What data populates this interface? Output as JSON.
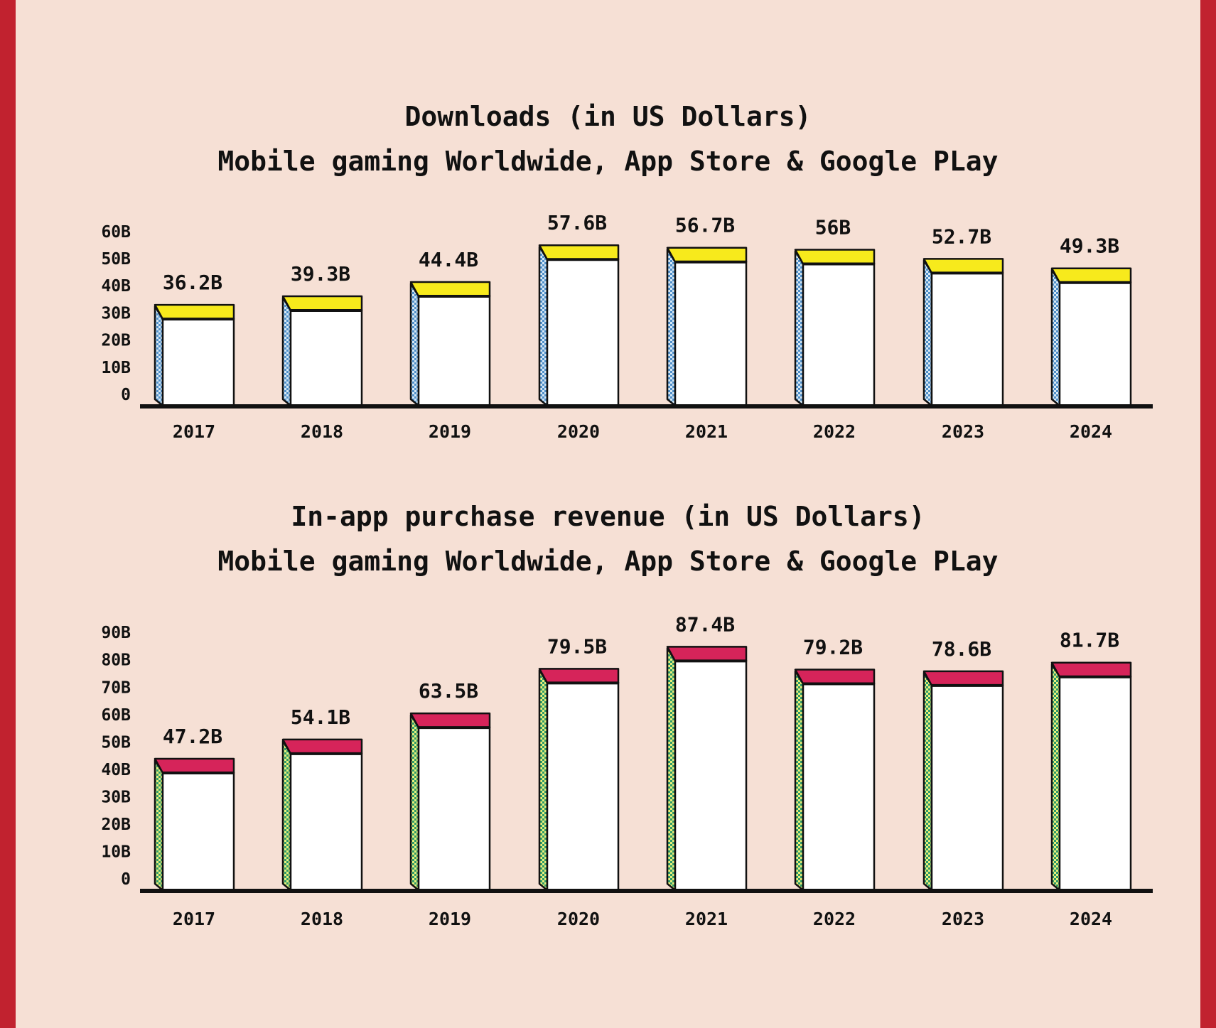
{
  "chart_data": [
    {
      "id": "downloads",
      "type": "bar",
      "title": "Downloads (in US Dollars)",
      "subtitle": "Mobile gaming Worldwide, App Store & Google PLay",
      "categories": [
        "2017",
        "2018",
        "2019",
        "2020",
        "2021",
        "2022",
        "2023",
        "2024"
      ],
      "values": [
        36.2,
        39.3,
        44.4,
        57.6,
        56.7,
        56,
        52.7,
        49.3
      ],
      "value_labels": [
        "36.2B",
        "39.3B",
        "44.4B",
        "57.6B",
        "56.7B",
        "56B",
        "52.7B",
        "49.3B"
      ],
      "yticks": [
        0,
        10,
        20,
        30,
        40,
        50,
        60
      ],
      "ytick_labels": [
        "0",
        "10B",
        "20B",
        "30B",
        "40B",
        "50B",
        "60B"
      ],
      "ylim": [
        0,
        60
      ],
      "xlabel": "",
      "ylabel": "",
      "grid": false,
      "legend": "none",
      "colors": {
        "cap": "#f7ea1c",
        "side": "#4f8fc9",
        "side_dots": "#d6e8f5",
        "face": "#ffffff",
        "outline": "#111111"
      }
    },
    {
      "id": "revenue",
      "type": "bar",
      "title": "In-app purchase revenue (in US Dollars)",
      "subtitle": "Mobile gaming Worldwide, App Store & Google PLay",
      "categories": [
        "2017",
        "2018",
        "2019",
        "2020",
        "2021",
        "2022",
        "2023",
        "2024"
      ],
      "values": [
        47.2,
        54.1,
        63.5,
        79.5,
        87.4,
        79.2,
        78.6,
        81.7
      ],
      "value_labels": [
        "47.2B",
        "54.1B",
        "63.5B",
        "79.5B",
        "87.4B",
        "79.2B",
        "78.6B",
        "81.7B"
      ],
      "yticks": [
        0,
        10,
        20,
        30,
        40,
        50,
        60,
        70,
        80,
        90
      ],
      "ytick_labels": [
        "0",
        "10B",
        "20B",
        "30B",
        "40B",
        "50B",
        "60B",
        "70B",
        "80B",
        "90B"
      ],
      "ylim": [
        0,
        90
      ],
      "xlabel": "",
      "ylabel": "",
      "grid": false,
      "legend": "none",
      "colors": {
        "cap": "#d6245a",
        "side": "#2e9a6a",
        "side_dots": "#e9ef7a",
        "face": "#ffffff",
        "outline": "#111111"
      }
    }
  ]
}
